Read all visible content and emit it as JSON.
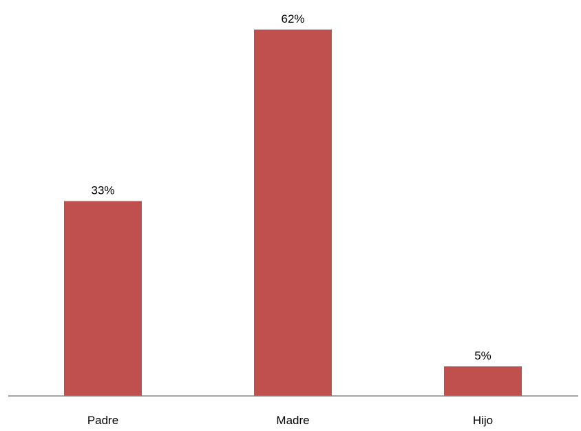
{
  "chart_data": {
    "type": "bar",
    "categories": [
      "Padre",
      "Madre",
      "Hijo"
    ],
    "values": [
      33,
      62,
      5
    ],
    "data_labels": [
      "33%",
      "62%",
      "5%"
    ],
    "unit": "%",
    "ylim": [
      0,
      62
    ],
    "grid": false,
    "legend": "none",
    "colors": {
      "bar": "#C0504D",
      "axis": "#868686"
    }
  }
}
